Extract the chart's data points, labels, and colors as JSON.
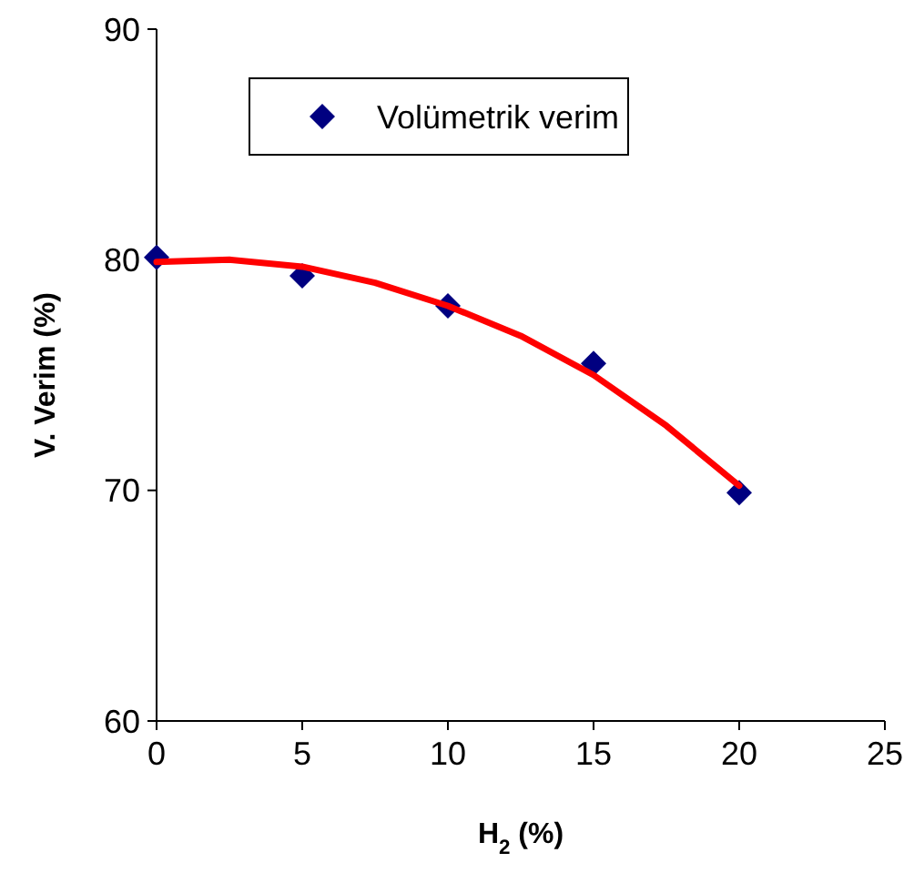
{
  "chart_data": {
    "type": "scatter",
    "xlabel": "H$_{2}$ (%)",
    "ylabel": "V. Verim (%)",
    "xlim": [
      0,
      25
    ],
    "xticks": [
      0,
      5,
      10,
      15,
      20,
      25
    ],
    "ylim": [
      60,
      90
    ],
    "yticks": [
      60,
      70,
      80,
      90
    ],
    "legend": "top",
    "grid": false,
    "series": [
      {
        "name": "Volümetrik verim",
        "marker": "diamond",
        "color": "#000080",
        "x": [
          0,
          5,
          10,
          15,
          20
        ],
        "values": [
          80.1,
          79.3,
          78.0,
          75.5,
          69.9
        ]
      },
      {
        "type": "line",
        "color": "#ff0000",
        "marker": "none",
        "line_style": "solid",
        "x": [
          0,
          2.5,
          5,
          7.5,
          10,
          12.5,
          15,
          17.5,
          20
        ],
        "values": [
          79.9,
          80.0,
          79.7,
          79.0,
          78.0,
          76.7,
          75.0,
          72.8,
          70.2
        ]
      }
    ]
  }
}
